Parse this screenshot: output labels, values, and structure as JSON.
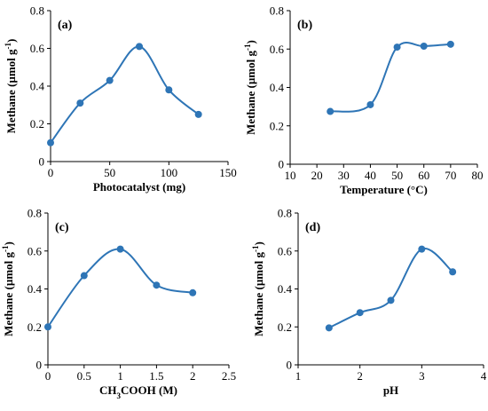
{
  "chart_data": [
    {
      "type": "line",
      "panel_label": "(a)",
      "xlabel": "Photocatalyst (mg)",
      "ylabel": "Methane (µmol g⁻¹)",
      "xlim": [
        0,
        150
      ],
      "ylim": [
        0,
        0.8
      ],
      "xticks": [
        0,
        50,
        100,
        150
      ],
      "xtick_labels": [
        "0",
        "50",
        "100",
        "150"
      ],
      "yticks": [
        0,
        0.2,
        0.4,
        0.6,
        0.8
      ],
      "ytick_labels": [
        "0",
        "0.2",
        "0.4",
        "0.6",
        "0.8"
      ],
      "x": [
        0,
        25,
        50,
        75,
        100,
        125
      ],
      "y": [
        0.1,
        0.31,
        0.43,
        0.61,
        0.38,
        0.25
      ],
      "color": "#2E75B6",
      "grid": false
    },
    {
      "type": "line",
      "panel_label": "(b)",
      "xlabel": "Temperature (°C)",
      "ylabel": "Methane (µmol g⁻¹)",
      "xlim": [
        10,
        80
      ],
      "ylim": [
        0,
        0.8
      ],
      "xticks": [
        10,
        20,
        30,
        40,
        50,
        60,
        70,
        80
      ],
      "xtick_labels": [
        "10",
        "20",
        "30",
        "40",
        "50",
        "60",
        "70",
        "80"
      ],
      "yticks": [
        0,
        0.2,
        0.4,
        0.6,
        0.8
      ],
      "ytick_labels": [
        "0",
        "0.2",
        "0.4",
        "0.6",
        "0.8"
      ],
      "x": [
        25,
        40,
        50,
        60,
        70
      ],
      "y": [
        0.275,
        0.31,
        0.61,
        0.615,
        0.625
      ],
      "color": "#2E75B6",
      "grid": false
    },
    {
      "type": "line",
      "panel_label": "(c)",
      "xlabel": "CH₃COOH (M)",
      "ylabel": "Methane (µmol g⁻¹)",
      "xlim": [
        0,
        2.5
      ],
      "ylim": [
        0,
        0.8
      ],
      "xticks": [
        0,
        0.5,
        1,
        1.5,
        2,
        2.5
      ],
      "xtick_labels": [
        "0",
        "0.5",
        "1",
        "1.5",
        "2",
        "2.5"
      ],
      "yticks": [
        0,
        0.2,
        0.4,
        0.6,
        0.8
      ],
      "ytick_labels": [
        "0",
        "0.2",
        "0.4",
        "0.6",
        "0.8"
      ],
      "x": [
        0,
        0.5,
        1,
        1.5,
        2
      ],
      "y": [
        0.2,
        0.47,
        0.61,
        0.42,
        0.38
      ],
      "color": "#2E75B6",
      "grid": false
    },
    {
      "type": "line",
      "panel_label": "(d)",
      "xlabel": "pH",
      "ylabel": "Methane (µmol g⁻¹)",
      "xlim": [
        1,
        4
      ],
      "ylim": [
        0,
        0.8
      ],
      "xticks": [
        1,
        2,
        3,
        4
      ],
      "xtick_labels": [
        "1",
        "2",
        "3",
        "4"
      ],
      "yticks": [
        0,
        0.2,
        0.4,
        0.6,
        0.8
      ],
      "ytick_labels": [
        "0",
        "0.2",
        "0.4",
        "0.6",
        "0.8"
      ],
      "x": [
        1.5,
        2,
        2.5,
        3,
        3.5
      ],
      "y": [
        0.195,
        0.275,
        0.34,
        0.61,
        0.49
      ],
      "color": "#2E75B6",
      "grid": false
    }
  ]
}
